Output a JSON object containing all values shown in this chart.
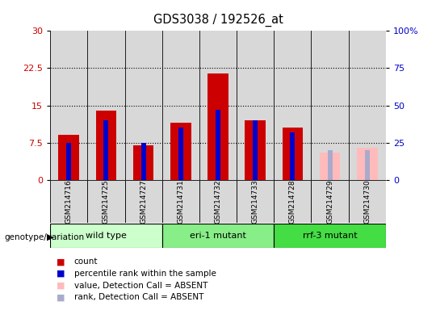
{
  "title": "GDS3038 / 192526_at",
  "samples": [
    "GSM214716",
    "GSM214725",
    "GSM214727",
    "GSM214731",
    "GSM214732",
    "GSM214733",
    "GSM214728",
    "GSM214729",
    "GSM214730"
  ],
  "count_values": [
    9.0,
    14.0,
    7.0,
    11.5,
    21.5,
    12.0,
    10.5,
    null,
    null
  ],
  "rank_values": [
    25,
    40,
    25,
    35,
    47,
    40,
    32,
    null,
    null
  ],
  "absent_count": [
    null,
    null,
    null,
    null,
    null,
    null,
    null,
    5.5,
    6.5
  ],
  "absent_rank": [
    null,
    null,
    null,
    null,
    null,
    null,
    null,
    20,
    20
  ],
  "ylim_left": [
    0,
    30
  ],
  "ylim_right": [
    0,
    100
  ],
  "yticks_left": [
    0,
    7.5,
    15,
    22.5,
    30
  ],
  "ytick_labels_left": [
    "0",
    "7.5",
    "15",
    "22.5",
    "30"
  ],
  "yticks_right": [
    0,
    25,
    50,
    75,
    100
  ],
  "ytick_labels_right": [
    "0",
    "25",
    "50",
    "75",
    "100%"
  ],
  "color_count": "#cc0000",
  "color_rank": "#0000cc",
  "color_absent_count": "#ffbbbb",
  "color_absent_rank": "#aaaacc",
  "bg_column": "#d8d8d8",
  "groups": [
    {
      "label": "wild type",
      "start": 0,
      "end": 2,
      "color": "#ccffcc"
    },
    {
      "label": "eri-1 mutant",
      "start": 3,
      "end": 5,
      "color": "#88ee88"
    },
    {
      "label": "rrf-3 mutant",
      "start": 6,
      "end": 8,
      "color": "#44dd44"
    }
  ],
  "legend_items": [
    {
      "label": "count",
      "color": "#cc0000"
    },
    {
      "label": "percentile rank within the sample",
      "color": "#0000cc"
    },
    {
      "label": "value, Detection Call = ABSENT",
      "color": "#ffbbbb"
    },
    {
      "label": "rank, Detection Call = ABSENT",
      "color": "#aaaacc"
    }
  ]
}
